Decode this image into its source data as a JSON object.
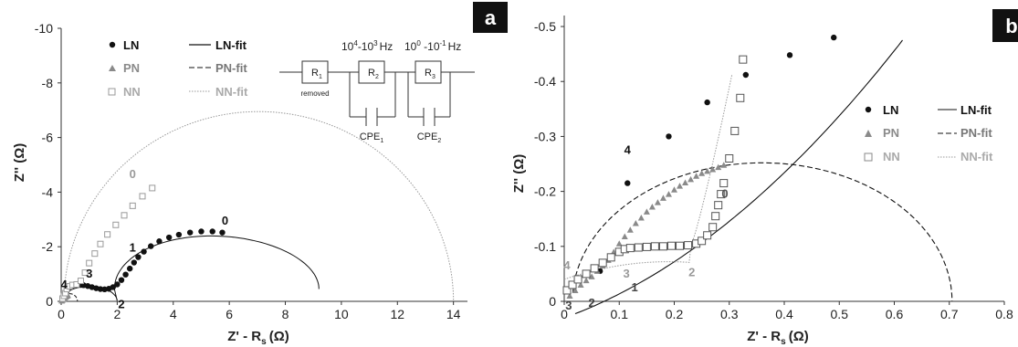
{
  "chart_data": [
    {
      "panel_label": "a",
      "type": "scatter",
      "xlabel": "Z' - R",
      "xlabel_sub": "s",
      "xlabel_unit": "(Ω)",
      "ylabel": "Z'' (Ω)",
      "xlim": [
        0,
        14.5
      ],
      "ylim": [
        0,
        -10
      ],
      "xticks": [
        0,
        2,
        4,
        6,
        8,
        10,
        12,
        14
      ],
      "yticks": [
        0,
        -2,
        -4,
        -6,
        -8,
        -10
      ],
      "xtick_labels": [
        "0",
        "2",
        "4",
        "6",
        "8",
        "10",
        "12",
        "14"
      ],
      "ytick_labels": [
        "0",
        "-2",
        "-4",
        "-6",
        "-8",
        "-10"
      ],
      "series": [
        {
          "name": "LN",
          "marker": "filled-circle",
          "color": "#111111",
          "x": [
            0.05,
            0.1,
            0.15,
            0.2,
            0.25,
            0.3,
            0.35,
            0.4,
            0.5,
            0.6,
            0.7,
            0.8,
            0.95,
            1.1,
            1.25,
            1.4,
            1.55,
            1.7,
            1.85,
            2.0,
            2.15,
            2.3,
            2.45,
            2.6,
            2.75,
            2.95,
            3.2,
            3.5,
            3.85,
            4.2,
            4.6,
            5.0,
            5.4,
            5.75
          ],
          "y": [
            -0.1,
            -0.2,
            -0.3,
            -0.38,
            -0.45,
            -0.5,
            -0.54,
            -0.57,
            -0.6,
            -0.61,
            -0.6,
            -0.59,
            -0.56,
            -0.52,
            -0.48,
            -0.45,
            -0.44,
            -0.46,
            -0.52,
            -0.62,
            -0.78,
            -0.98,
            -1.2,
            -1.42,
            -1.62,
            -1.82,
            -2.02,
            -2.2,
            -2.34,
            -2.44,
            -2.52,
            -2.56,
            -2.56,
            -2.52
          ]
        },
        {
          "name": "PN",
          "marker": "triangle",
          "color": "#8a8a8a",
          "x": [
            0.02,
            0.05,
            0.08,
            0.12,
            0.15,
            0.18,
            0.21,
            0.24
          ],
          "y": [
            -0.02,
            -0.05,
            -0.09,
            -0.13,
            -0.16,
            -0.18,
            -0.2,
            -0.22
          ]
        },
        {
          "name": "NN",
          "marker": "open-square",
          "color": "#9a9a9a",
          "x": [
            0.05,
            0.1,
            0.15,
            0.2,
            0.3,
            0.4,
            0.55,
            0.7,
            0.85,
            1.0,
            1.2,
            1.4,
            1.65,
            1.95,
            2.25,
            2.55,
            2.9,
            3.25
          ],
          "y": [
            -0.1,
            -0.2,
            -0.3,
            -0.45,
            -0.55,
            -0.6,
            -0.62,
            -0.75,
            -1.05,
            -1.4,
            -1.75,
            -2.1,
            -2.45,
            -2.8,
            -3.15,
            -3.5,
            -3.85,
            -4.15
          ]
        }
      ],
      "fit_legend": [
        "LN-fit",
        "PN-fit",
        "NN-fit"
      ],
      "point_labels": [
        {
          "text": "0",
          "x": 5.85,
          "y": -2.95,
          "color": "#111111"
        },
        {
          "text": "1",
          "x": 2.55,
          "y": -1.95,
          "color": "#111111"
        },
        {
          "text": "2",
          "x": 2.15,
          "y": 0.12,
          "color": "#111111"
        },
        {
          "text": "3",
          "x": 1.0,
          "y": -1.0,
          "color": "#111111"
        },
        {
          "text": "4",
          "x": 0.1,
          "y": -0.6,
          "color": "#111111"
        },
        {
          "text": "0",
          "x": 2.55,
          "y": -4.65,
          "color": "#9a9a9a"
        }
      ],
      "circuit": {
        "elements": [
          "R",
          "R",
          "R"
        ],
        "subscripts": [
          "1",
          "2",
          "3"
        ],
        "cpe": [
          "CPE",
          "CPE"
        ],
        "cpe_subscripts": [
          "1",
          "2"
        ],
        "removed_note": "removed",
        "freq_range_1": {
          "a": "10",
          "a_exp": "4",
          "b": "-10",
          "b_exp": "3",
          "unit": "Hz"
        },
        "freq_range_2": {
          "a": "10",
          "a_exp": "0",
          "b": " -10",
          "b_exp": "-1",
          "unit": "Hz"
        }
      }
    },
    {
      "panel_label": "b",
      "type": "scatter",
      "xlabel": "Z' - R",
      "xlabel_sub": "s",
      "xlabel_unit": "(Ω)",
      "ylabel": "Z'' (Ω)",
      "xlim": [
        0,
        0.8
      ],
      "ylim": [
        0,
        -0.52
      ],
      "xticks": [
        0,
        0.1,
        0.2,
        0.3,
        0.4,
        0.5,
        0.6,
        0.7,
        0.8
      ],
      "yticks": [
        0,
        -0.1,
        -0.2,
        -0.3,
        -0.4,
        -0.5
      ],
      "xtick_labels": [
        "0",
        "0.1",
        "0.2",
        "0.3",
        "0.4",
        "0.5",
        "0.6",
        "0.7",
        "0.8"
      ],
      "ytick_labels": [
        "0",
        "-0.1",
        "-0.2",
        "-0.3",
        "-0.4",
        "-0.5"
      ],
      "series": [
        {
          "name": "LN",
          "marker": "filled-circle",
          "color": "#111111",
          "x": [
            0.065,
            0.115,
            0.19,
            0.26,
            0.33,
            0.41,
            0.49
          ],
          "y": [
            -0.055,
            -0.215,
            -0.3,
            -0.362,
            -0.412,
            -0.448,
            -0.48
          ]
        },
        {
          "name": "PN",
          "marker": "triangle",
          "color": "#8a8a8a",
          "x": [
            0.01,
            0.02,
            0.03,
            0.04,
            0.05,
            0.06,
            0.07,
            0.08,
            0.09,
            0.1,
            0.11,
            0.12,
            0.13,
            0.14,
            0.15,
            0.16,
            0.17,
            0.18,
            0.19,
            0.2,
            0.21,
            0.22,
            0.23,
            0.24,
            0.25,
            0.26,
            0.27,
            0.28,
            0.29
          ],
          "y": [
            -0.01,
            -0.02,
            -0.03,
            -0.038,
            -0.045,
            -0.055,
            -0.065,
            -0.075,
            -0.09,
            -0.105,
            -0.118,
            -0.13,
            -0.142,
            -0.152,
            -0.163,
            -0.172,
            -0.18,
            -0.188,
            -0.195,
            -0.203,
            -0.21,
            -0.216,
            -0.222,
            -0.228,
            -0.233,
            -0.237,
            -0.24,
            -0.244,
            -0.248
          ]
        },
        {
          "name": "NN",
          "marker": "open-square",
          "color": "#555555",
          "x": [
            0.005,
            0.015,
            0.025,
            0.04,
            0.055,
            0.07,
            0.085,
            0.1,
            0.11,
            0.12,
            0.135,
            0.15,
            0.165,
            0.18,
            0.195,
            0.21,
            0.225,
            0.24,
            0.25,
            0.26,
            0.27,
            0.275,
            0.28,
            0.285,
            0.29,
            0.3,
            0.31,
            0.32
          ],
          "y": [
            -0.02,
            -0.03,
            -0.04,
            -0.05,
            -0.06,
            -0.07,
            -0.08,
            -0.09,
            -0.095,
            -0.097,
            -0.098,
            -0.099,
            -0.1,
            -0.1,
            -0.101,
            -0.101,
            -0.102,
            -0.105,
            -0.11,
            -0.12,
            -0.135,
            -0.155,
            -0.175,
            -0.195,
            -0.215,
            -0.26,
            -0.31,
            -0.37
          ]
        },
        {
          "name": "NN",
          "marker": "open-square",
          "color": "#555555",
          "x": [
            0.325
          ],
          "y": [
            -0.44
          ]
        }
      ],
      "fit_legend": [
        "LN-fit",
        "PN-fit",
        "NN-fit"
      ],
      "point_labels": [
        {
          "text": "4",
          "x": 0.115,
          "y": -0.275,
          "color": "#111111"
        },
        {
          "text": "0",
          "x": 0.292,
          "y": -0.195,
          "color": "#555555"
        },
        {
          "text": "4",
          "x": 0.005,
          "y": -0.065,
          "color": "#9a9a9a"
        },
        {
          "text": "3",
          "x": 0.113,
          "y": -0.05,
          "color": "#9a9a9a"
        },
        {
          "text": "2",
          "x": 0.232,
          "y": -0.052,
          "color": "#9a9a9a"
        },
        {
          "text": "1",
          "x": 0.128,
          "y": -0.025,
          "color": "#444444"
        },
        {
          "text": "2",
          "x": 0.05,
          "y": 0.003,
          "color": "#444444"
        },
        {
          "text": "3",
          "x": 0.008,
          "y": 0.008,
          "color": "#444444"
        }
      ]
    }
  ]
}
